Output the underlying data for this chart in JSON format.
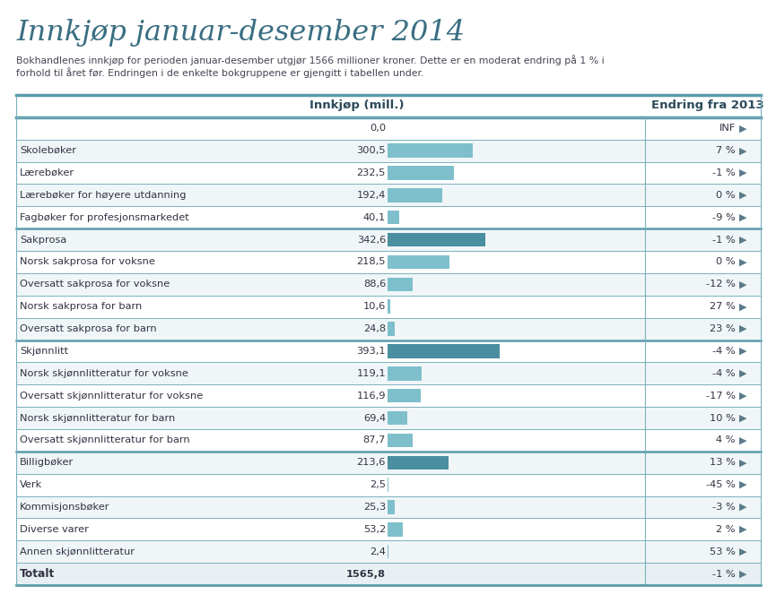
{
  "title": "Innkjøp januar-desember 2014",
  "subtitle": "Bokhandlenes innkjøp for perioden januar-desember utgjør 1566 millioner kroner. Dette er en moderat endring på 1 % i\nforhold til året før. Endringen i de enkelte bokgruppene er gjengitt i tabellen under.",
  "col_header_left": "Innkjøp (mill.)",
  "col_header_right": "Endring fra 2013",
  "rows": [
    {
      "label": "",
      "value": 0.0,
      "change": "INF",
      "bold": false,
      "is_separator": true
    },
    {
      "label": "Skolebøker",
      "value": 300.5,
      "change": "7 %",
      "bold": false,
      "is_separator": false
    },
    {
      "label": "Lærebøker",
      "value": 232.5,
      "change": "-1 %",
      "bold": false,
      "is_separator": false
    },
    {
      "label": "Lærebøker for høyere utdanning",
      "value": 192.4,
      "change": "0 %",
      "bold": false,
      "is_separator": false
    },
    {
      "label": "Fagbøker for profesjonsmarkedet",
      "value": 40.1,
      "change": "-9 %",
      "bold": false,
      "is_separator": false
    },
    {
      "label": "Sakprosa",
      "value": 342.6,
      "change": "-1 %",
      "bold": false,
      "is_separator": true
    },
    {
      "label": "Norsk sakprosa for voksne",
      "value": 218.5,
      "change": "0 %",
      "bold": false,
      "is_separator": false
    },
    {
      "label": "Oversatt sakprosa for voksne",
      "value": 88.6,
      "change": "-12 %",
      "bold": false,
      "is_separator": false
    },
    {
      "label": "Norsk sakprosa for barn",
      "value": 10.6,
      "change": "27 %",
      "bold": false,
      "is_separator": false
    },
    {
      "label": "Oversatt sakprosa for barn",
      "value": 24.8,
      "change": "23 %",
      "bold": false,
      "is_separator": false
    },
    {
      "label": "Skjønnlitt",
      "value": 393.1,
      "change": "-4 %",
      "bold": false,
      "is_separator": true
    },
    {
      "label": "Norsk skjønnlitteratur for voksne",
      "value": 119.1,
      "change": "-4 %",
      "bold": false,
      "is_separator": false
    },
    {
      "label": "Oversatt skjønnlitteratur for voksne",
      "value": 116.9,
      "change": "-17 %",
      "bold": false,
      "is_separator": false
    },
    {
      "label": "Norsk skjønnlitteratur for barn",
      "value": 69.4,
      "change": "10 %",
      "bold": false,
      "is_separator": false
    },
    {
      "label": "Oversatt skjønnlitteratur for barn",
      "value": 87.7,
      "change": "4 %",
      "bold": false,
      "is_separator": false
    },
    {
      "label": "Billigbøker",
      "value": 213.6,
      "change": "13 %",
      "bold": false,
      "is_separator": true
    },
    {
      "label": "Verk",
      "value": 2.5,
      "change": "-45 %",
      "bold": false,
      "is_separator": false
    },
    {
      "label": "Kommisjonsbøker",
      "value": 25.3,
      "change": "-3 %",
      "bold": false,
      "is_separator": false
    },
    {
      "label": "Diverse varer",
      "value": 53.2,
      "change": "2 %",
      "bold": false,
      "is_separator": false
    },
    {
      "label": "Annen skjønnlitteratur",
      "value": 2.4,
      "change": "53 %",
      "bold": false,
      "is_separator": false
    },
    {
      "label": "Totalt",
      "value": 1565.8,
      "change": "-1 %",
      "bold": true,
      "is_separator": false
    }
  ],
  "bar_color_dark": "#4a8fa0",
  "bar_color_light": "#7fbfcc",
  "separator_color": "#7ab0bc",
  "separator_thick_color": "#5a9aaa",
  "text_color": "#333344",
  "title_color": "#3a6e82",
  "subtitle_color": "#444455",
  "bold_row_bg": "#e8f0f3",
  "row_bg_white": "#ffffff",
  "row_bg_stripe": "#f0f6f8",
  "max_bar_value": 900,
  "background_color": "#ffffff",
  "category_header_labels": [
    "",
    "Sakprosa",
    "Skjønnlitt",
    "Billigbøker"
  ],
  "arrow_color_up": "#5a7a8a",
  "arrow_color_down": "#5a7a8a",
  "arrow_color_neutral": "#5a7a8a"
}
